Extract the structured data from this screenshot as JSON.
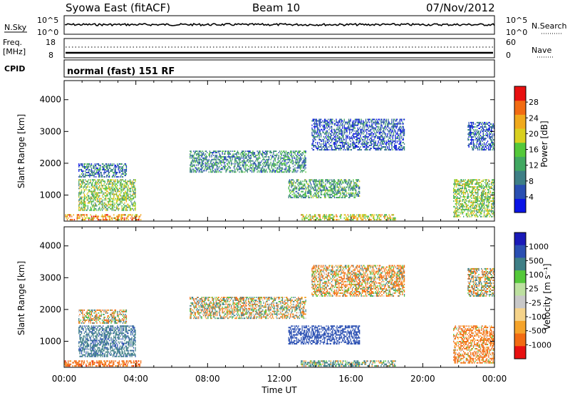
{
  "header": {
    "station": "Syowa East (fitACF)",
    "beam": "Beam 10",
    "date": "07/Nov/2012"
  },
  "noise_panel": {
    "left_label": "N.Sky",
    "right_label": "N.Search",
    "left_ticks": [
      "10^5",
      "10^0"
    ],
    "right_ticks": [
      "10^5",
      "10^0"
    ]
  },
  "freq_panel": {
    "left_label_top": "Freq.",
    "left_label_unit": "[MHz]",
    "right_label": "Nave",
    "left_ticks": [
      "18",
      "8"
    ],
    "right_ticks": [
      "60",
      "0"
    ]
  },
  "cpid": {
    "label": "CPID",
    "mode": "normal (fast) 151 RF"
  },
  "colors": {
    "power_scale": [
      "#0a14e6",
      "#2a4fb2",
      "#3e7f86",
      "#41a861",
      "#54c83a",
      "#d9d020",
      "#f0a91c",
      "#f26b12",
      "#e81010"
    ],
    "velocity_scale": [
      "#e81010",
      "#f26b12",
      "#f5a32a",
      "#f5d38a",
      "#c8c8c8",
      "#bde0a0",
      "#54c83a",
      "#3e7f86",
      "#2a4fb2",
      "#1a1ab8"
    ]
  },
  "chart_data": [
    {
      "type": "heatmap",
      "name_ref": "power",
      "ylabel": "Slant Range [km]",
      "yticks": [
        "1000",
        "2000",
        "3000",
        "4000"
      ],
      "ylim": [
        180,
        4600
      ],
      "xlim": [
        0,
        24
      ],
      "colorbar_label": "Power [dB]",
      "colorbar_ticks": [
        "4",
        "8",
        "12",
        "16",
        "20",
        "24",
        "28"
      ],
      "colorbar_range": [
        0,
        32
      ],
      "echo_bands": [
        {
          "t0": 0.0,
          "t1": 4.3,
          "r0": 200,
          "r1": 400,
          "level": 24
        },
        {
          "t0": 0.8,
          "t1": 4.0,
          "r0": 500,
          "r1": 1500,
          "level": 16
        },
        {
          "t0": 0.8,
          "t1": 3.5,
          "r0": 1550,
          "r1": 2000,
          "level": 8
        },
        {
          "t0": 7.0,
          "t1": 13.5,
          "r0": 1700,
          "r1": 2400,
          "level": 10
        },
        {
          "t0": 12.5,
          "t1": 16.5,
          "r0": 900,
          "r1": 1500,
          "level": 12
        },
        {
          "t0": 13.2,
          "t1": 18.5,
          "r0": 200,
          "r1": 400,
          "level": 20
        },
        {
          "t0": 13.8,
          "t1": 19.0,
          "r0": 2400,
          "r1": 3400,
          "level": 6
        },
        {
          "t0": 21.7,
          "t1": 24.0,
          "r0": 300,
          "r1": 1500,
          "level": 16
        },
        {
          "t0": 22.5,
          "t1": 24.0,
          "r0": 2400,
          "r1": 3300,
          "level": 6
        }
      ]
    },
    {
      "type": "heatmap",
      "name_ref": "velocity",
      "ylabel": "Slant Range [km]",
      "yticks": [
        "1000",
        "2000",
        "3000",
        "4000"
      ],
      "ylim": [
        180,
        4600
      ],
      "xlim": [
        0,
        24
      ],
      "xlabel": "Time UT",
      "xticks": [
        "00:00",
        "04:00",
        "08:00",
        "12:00",
        "16:00",
        "20:00",
        "00:00"
      ],
      "colorbar_label": "Velocity [m s⁻¹]",
      "colorbar_ticks": [
        "1000",
        "500",
        "100",
        "25",
        "-25",
        "-100",
        "-500",
        "-1000"
      ],
      "echo_bands": [
        {
          "t0": 0.0,
          "t1": 4.3,
          "r0": 200,
          "r1": 400,
          "level": -300
        },
        {
          "t0": 0.8,
          "t1": 4.0,
          "r0": 500,
          "r1": 1500,
          "level": 400
        },
        {
          "t0": 0.8,
          "t1": 3.5,
          "r0": 1550,
          "r1": 2000,
          "level": 0
        },
        {
          "t0": 7.0,
          "t1": 13.5,
          "r0": 1700,
          "r1": 2400,
          "level": 0
        },
        {
          "t0": 12.5,
          "t1": 16.5,
          "r0": 900,
          "r1": 1500,
          "level": 800
        },
        {
          "t0": 13.2,
          "t1": 18.5,
          "r0": 200,
          "r1": 400,
          "level": 120
        },
        {
          "t0": 13.8,
          "t1": 19.0,
          "r0": 2400,
          "r1": 3400,
          "level": -80
        },
        {
          "t0": 21.7,
          "t1": 24.0,
          "r0": 300,
          "r1": 1500,
          "level": -200
        },
        {
          "t0": 22.5,
          "t1": 24.0,
          "r0": 2400,
          "r1": 3300,
          "level": 0
        }
      ]
    }
  ]
}
